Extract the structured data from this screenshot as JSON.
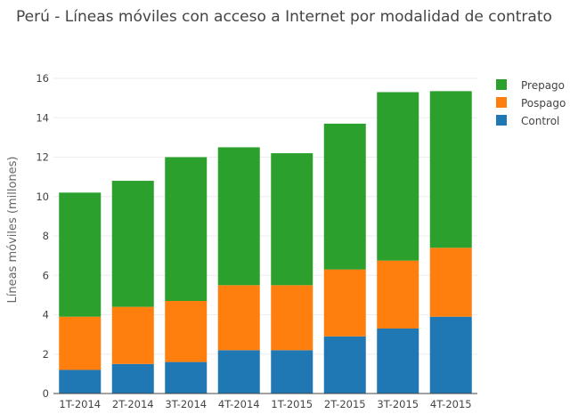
{
  "chart_data": {
    "type": "bar",
    "stacked": true,
    "title": "Perú - Líneas móviles con acceso a Internet por modalidad de contrato",
    "xlabel": "",
    "ylabel": "Líneas móviles (millones)",
    "ylim": [
      0,
      16
    ],
    "yticks": [
      0,
      2,
      4,
      6,
      8,
      10,
      12,
      14,
      16
    ],
    "grid": true,
    "legend_position": "top-right",
    "categories": [
      "1T-2014",
      "2T-2014",
      "3T-2014",
      "4T-2014",
      "1T-2015",
      "2T-2015",
      "3T-2015",
      "4T-2015"
    ],
    "series": [
      {
        "name": "Control",
        "color": "#1f77b4",
        "values": [
          1.2,
          1.5,
          1.6,
          2.2,
          2.2,
          2.9,
          3.3,
          3.9
        ]
      },
      {
        "name": "Pospago",
        "color": "#ff7f0e",
        "values": [
          2.7,
          2.9,
          3.1,
          3.3,
          3.3,
          3.4,
          3.45,
          3.5
        ]
      },
      {
        "name": "Prepago",
        "color": "#2ca02c",
        "values": [
          6.3,
          6.4,
          7.3,
          7.0,
          6.7,
          7.4,
          8.55,
          7.95
        ]
      }
    ],
    "legend_order": [
      "Prepago",
      "Pospago",
      "Control"
    ]
  }
}
